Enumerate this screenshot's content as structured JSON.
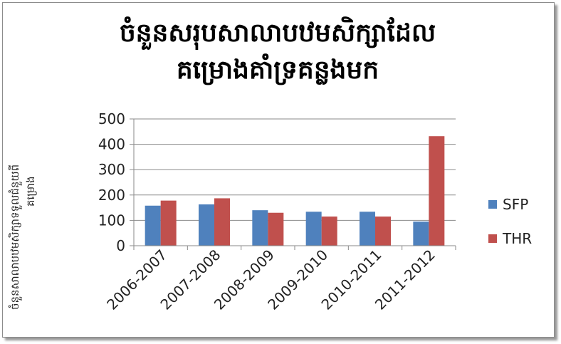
{
  "chart_data": {
    "type": "bar",
    "title_lines": [
      "ចំនួនសរុបសាលាបឋមសិក្សាដែល",
      "គម្រោងគាំទ្រគន្លងមក"
    ],
    "ylabel_lines": [
      "ចំនួនសាលាបឋមសិក្សាទទួលជំនួយពី",
      "គម្រោង"
    ],
    "xlabel": "",
    "categories": [
      "2006-2007",
      "2007-2008",
      "2008-2009",
      "2009-2010",
      "2010-2011",
      "2011-2012"
    ],
    "series": [
      {
        "name": "SFP",
        "values": [
          158,
          163,
          140,
          134,
          134,
          95
        ],
        "color": "#4f81bd"
      },
      {
        "name": "THR",
        "values": [
          178,
          187,
          130,
          115,
          115,
          432
        ],
        "color": "#c0504d"
      }
    ],
    "ylim": [
      0,
      500
    ],
    "yticks": [
      0,
      100,
      200,
      300,
      400,
      500
    ],
    "grid": true,
    "legend_position": "right"
  }
}
